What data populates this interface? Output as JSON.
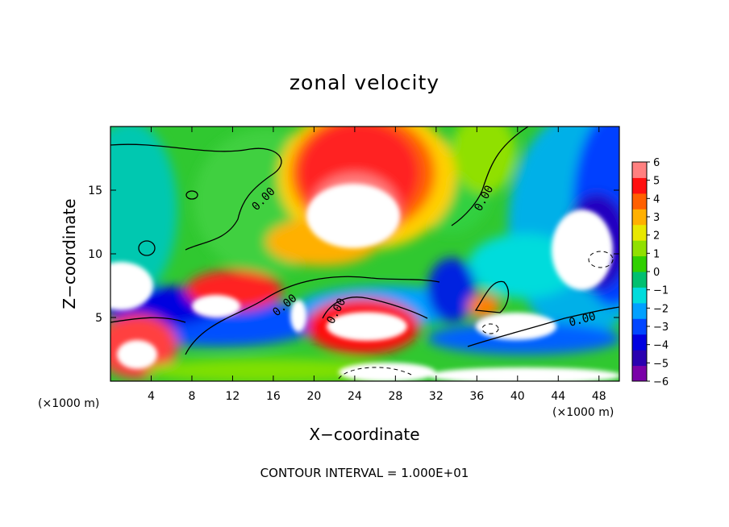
{
  "chart_data": {
    "type": "heatmap",
    "title": "zonal velocity",
    "xlabel": "X−coordinate",
    "ylabel": "Z−coordinate",
    "x_unit": "(×1000 m)",
    "y_unit": "(×1000 m)",
    "xlim": [
      0,
      50
    ],
    "ylim": [
      0,
      20
    ],
    "x_ticks": [
      4,
      8,
      12,
      16,
      20,
      24,
      28,
      32,
      36,
      40,
      44,
      48
    ],
    "y_ticks": [
      5,
      10,
      15
    ],
    "colorbar": {
      "ticks": [
        6,
        5,
        4,
        3,
        2,
        1,
        0,
        -1,
        -2,
        -3,
        -4,
        -5,
        -6
      ],
      "tick_labels": [
        "6",
        "5",
        "4",
        "3",
        "2",
        "1",
        "0",
        "−1",
        "−2",
        "−3",
        "−4",
        "−5",
        "−6"
      ],
      "range": [
        -6,
        6
      ],
      "colors": [
        "#7a00a8",
        "#2a00b0",
        "#0000e0",
        "#0046ff",
        "#00a0ff",
        "#00dcdc",
        "#00c070",
        "#30d000",
        "#90e000",
        "#e8e800",
        "#ffb000",
        "#ff6000",
        "#ff1010",
        "#ff8080"
      ]
    },
    "contour_labels": [
      {
        "text": "0.00",
        "x": 15.0,
        "z": 14.0
      },
      {
        "text": "0.00",
        "x": 17.5,
        "z": 5.6
      },
      {
        "text": "0.00",
        "x": 22.0,
        "z": 5.5
      },
      {
        "text": "0.00",
        "x": 36.5,
        "z": 14.0
      },
      {
        "text": "0.00",
        "x": 46.5,
        "z": 4.7
      }
    ],
    "contour_interval_text": "CONTOUR INTERVAL = 1.000E+01",
    "description_values": [
      {
        "region": "upper-center red maximum",
        "x": 24.5,
        "z": 13.5,
        "value": 6.5
      },
      {
        "region": "lower-center red band",
        "x": 25.0,
        "z": 4.5,
        "value": 6.0
      },
      {
        "region": "upper-right blue minimum",
        "x": 46.0,
        "z": 14.0,
        "value": -6.0
      },
      {
        "region": "left blue band",
        "x": 5.0,
        "z": 7.5,
        "value": -5.0
      }
    ]
  },
  "text": {
    "title": "zonal velocity",
    "xlabel": "X−coordinate",
    "ylabel": "Z−coordinate",
    "x_unit_left": "(×1000 m)",
    "x_unit_right": "(×1000 m)",
    "contour_interval": "CONTOUR INTERVAL = 1.000E+01",
    "contour_label": "0.00"
  }
}
